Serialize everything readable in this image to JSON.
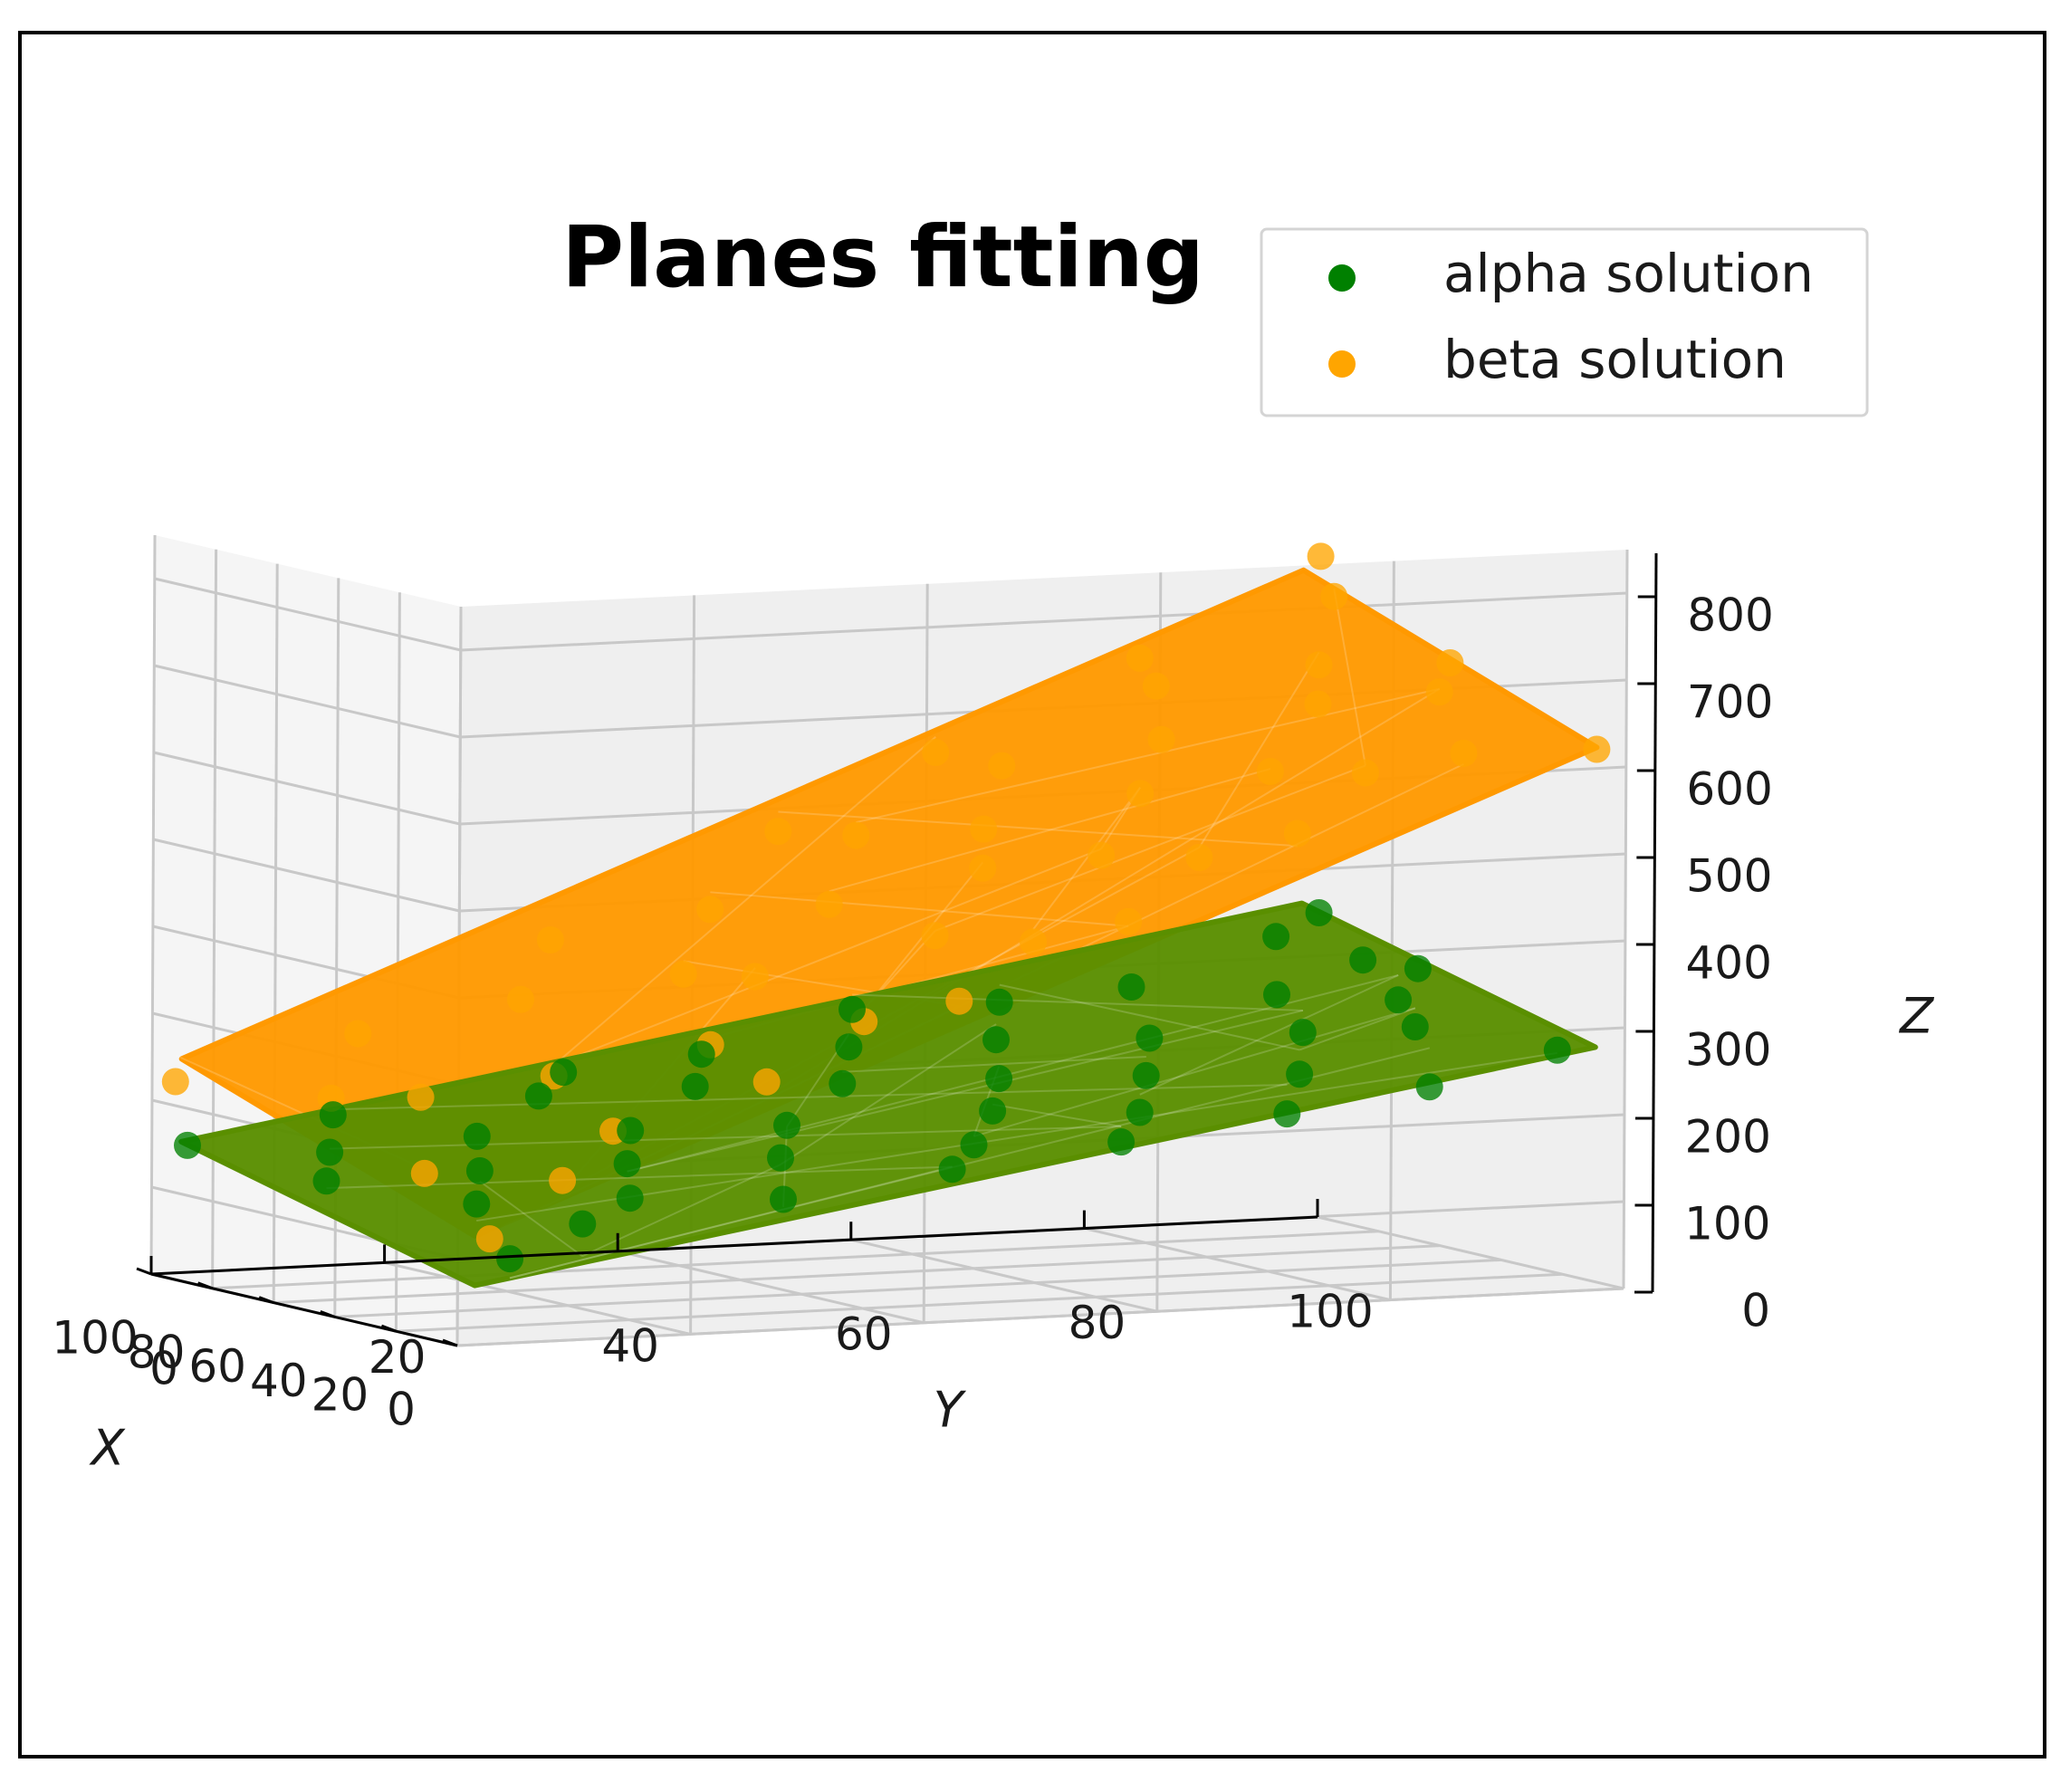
{
  "chart_data": {
    "type": "scatter",
    "title": "Planes fitting",
    "xlabel": "X",
    "ylabel": "Y",
    "zlabel": "Z",
    "x_ticks": [
      "0",
      "20",
      "40",
      "60",
      "80",
      "100"
    ],
    "y_ticks": [
      "0",
      "20",
      "40",
      "60",
      "80",
      "100"
    ],
    "z_ticks": [
      "0",
      "100",
      "200",
      "300",
      "400",
      "500",
      "600",
      "700",
      "800"
    ],
    "xlim": [
      0,
      100
    ],
    "ylim": [
      0,
      100
    ],
    "zlim": [
      0,
      850
    ],
    "grid": true,
    "legend_position": "top-right",
    "series": [
      {
        "name": "alpha solution",
        "color": "#008000",
        "surface_color": "#5a8f00",
        "plane": {
          "a": 0.9,
          "b": 2.2,
          "c": 60
        },
        "points": [
          [
            2,
            5,
            95
          ],
          [
            5,
            12,
            128
          ],
          [
            8,
            30,
            142
          ],
          [
            10,
            45,
            165
          ],
          [
            12,
            60,
            185
          ],
          [
            15,
            75,
            205
          ],
          [
            18,
            88,
            225
          ],
          [
            20,
            20,
            140
          ],
          [
            22,
            50,
            180
          ],
          [
            25,
            65,
            205
          ],
          [
            28,
            35,
            170
          ],
          [
            30,
            80,
            235
          ],
          [
            32,
            10,
            130
          ],
          [
            35,
            55,
            205
          ],
          [
            38,
            92,
            275
          ],
          [
            40,
            25,
            160
          ],
          [
            42,
            70,
            230
          ],
          [
            45,
            40,
            190
          ],
          [
            48,
            85,
            265
          ],
          [
            50,
            15,
            150
          ],
          [
            52,
            60,
            225
          ],
          [
            55,
            95,
            290
          ],
          [
            58,
            30,
            180
          ],
          [
            60,
            75,
            255
          ],
          [
            62,
            5,
            135
          ],
          [
            65,
            50,
            215
          ],
          [
            68,
            88,
            290
          ],
          [
            70,
            20,
            170
          ],
          [
            72,
            65,
            250
          ],
          [
            75,
            40,
            210
          ],
          [
            78,
            98,
            315
          ],
          [
            80,
            10,
            150
          ],
          [
            82,
            55,
            240
          ],
          [
            85,
            80,
            290
          ],
          [
            88,
            30,
            195
          ],
          [
            90,
            70,
            275
          ],
          [
            92,
            45,
            230
          ],
          [
            95,
            95,
            330
          ],
          [
            98,
            15,
            175
          ],
          [
            100,
            60,
            265
          ],
          [
            96,
            2,
            150
          ],
          [
            100,
            100,
            350
          ],
          [
            3,
            95,
            275
          ],
          [
            99,
            35,
            210
          ],
          [
            60,
            98,
            320
          ]
        ]
      },
      {
        "name": "beta solution",
        "color": "#ffa500",
        "surface_color": "#ff9900",
        "plane": {
          "a": 1.3,
          "b": 5.2,
          "c": 110
        },
        "points": [
          [
            1,
            3,
            120
          ],
          [
            4,
            10,
            180
          ],
          [
            6,
            28,
            280
          ],
          [
            8,
            45,
            360
          ],
          [
            10,
            60,
            440
          ],
          [
            12,
            75,
            530
          ],
          [
            15,
            90,
            610
          ],
          [
            18,
            18,
            220
          ],
          [
            20,
            40,
            330
          ],
          [
            22,
            55,
            410
          ],
          [
            25,
            70,
            495
          ],
          [
            28,
            85,
            580
          ],
          [
            30,
            5,
            170
          ],
          [
            32,
            30,
            300
          ],
          [
            35,
            50,
            410
          ],
          [
            38,
            65,
            490
          ],
          [
            40,
            80,
            575
          ],
          [
            42,
            95,
            655
          ],
          [
            45,
            20,
            260
          ],
          [
            48,
            38,
            360
          ],
          [
            50,
            58,
            470
          ],
          [
            52,
            72,
            545
          ],
          [
            55,
            88,
            635
          ],
          [
            58,
            12,
            230
          ],
          [
            60,
            35,
            355
          ],
          [
            62,
            48,
            425
          ],
          [
            65,
            62,
            500
          ],
          [
            68,
            78,
            590
          ],
          [
            70,
            92,
            665
          ],
          [
            72,
            8,
            220
          ],
          [
            75,
            25,
            320
          ],
          [
            78,
            42,
            410
          ],
          [
            80,
            55,
            485
          ],
          [
            82,
            68,
            555
          ],
          [
            85,
            82,
            635
          ],
          [
            88,
            98,
            725
          ],
          [
            90,
            15,
            275
          ],
          [
            92,
            32,
            370
          ],
          [
            94,
            52,
            480
          ],
          [
            96,
            66,
            560
          ],
          [
            98,
            84,
            655
          ],
          [
            100,
            100,
            760
          ],
          [
            100,
            2,
            220
          ],
          [
            2,
            98,
            620
          ],
          [
            50,
            98,
            680
          ]
        ]
      }
    ]
  }
}
